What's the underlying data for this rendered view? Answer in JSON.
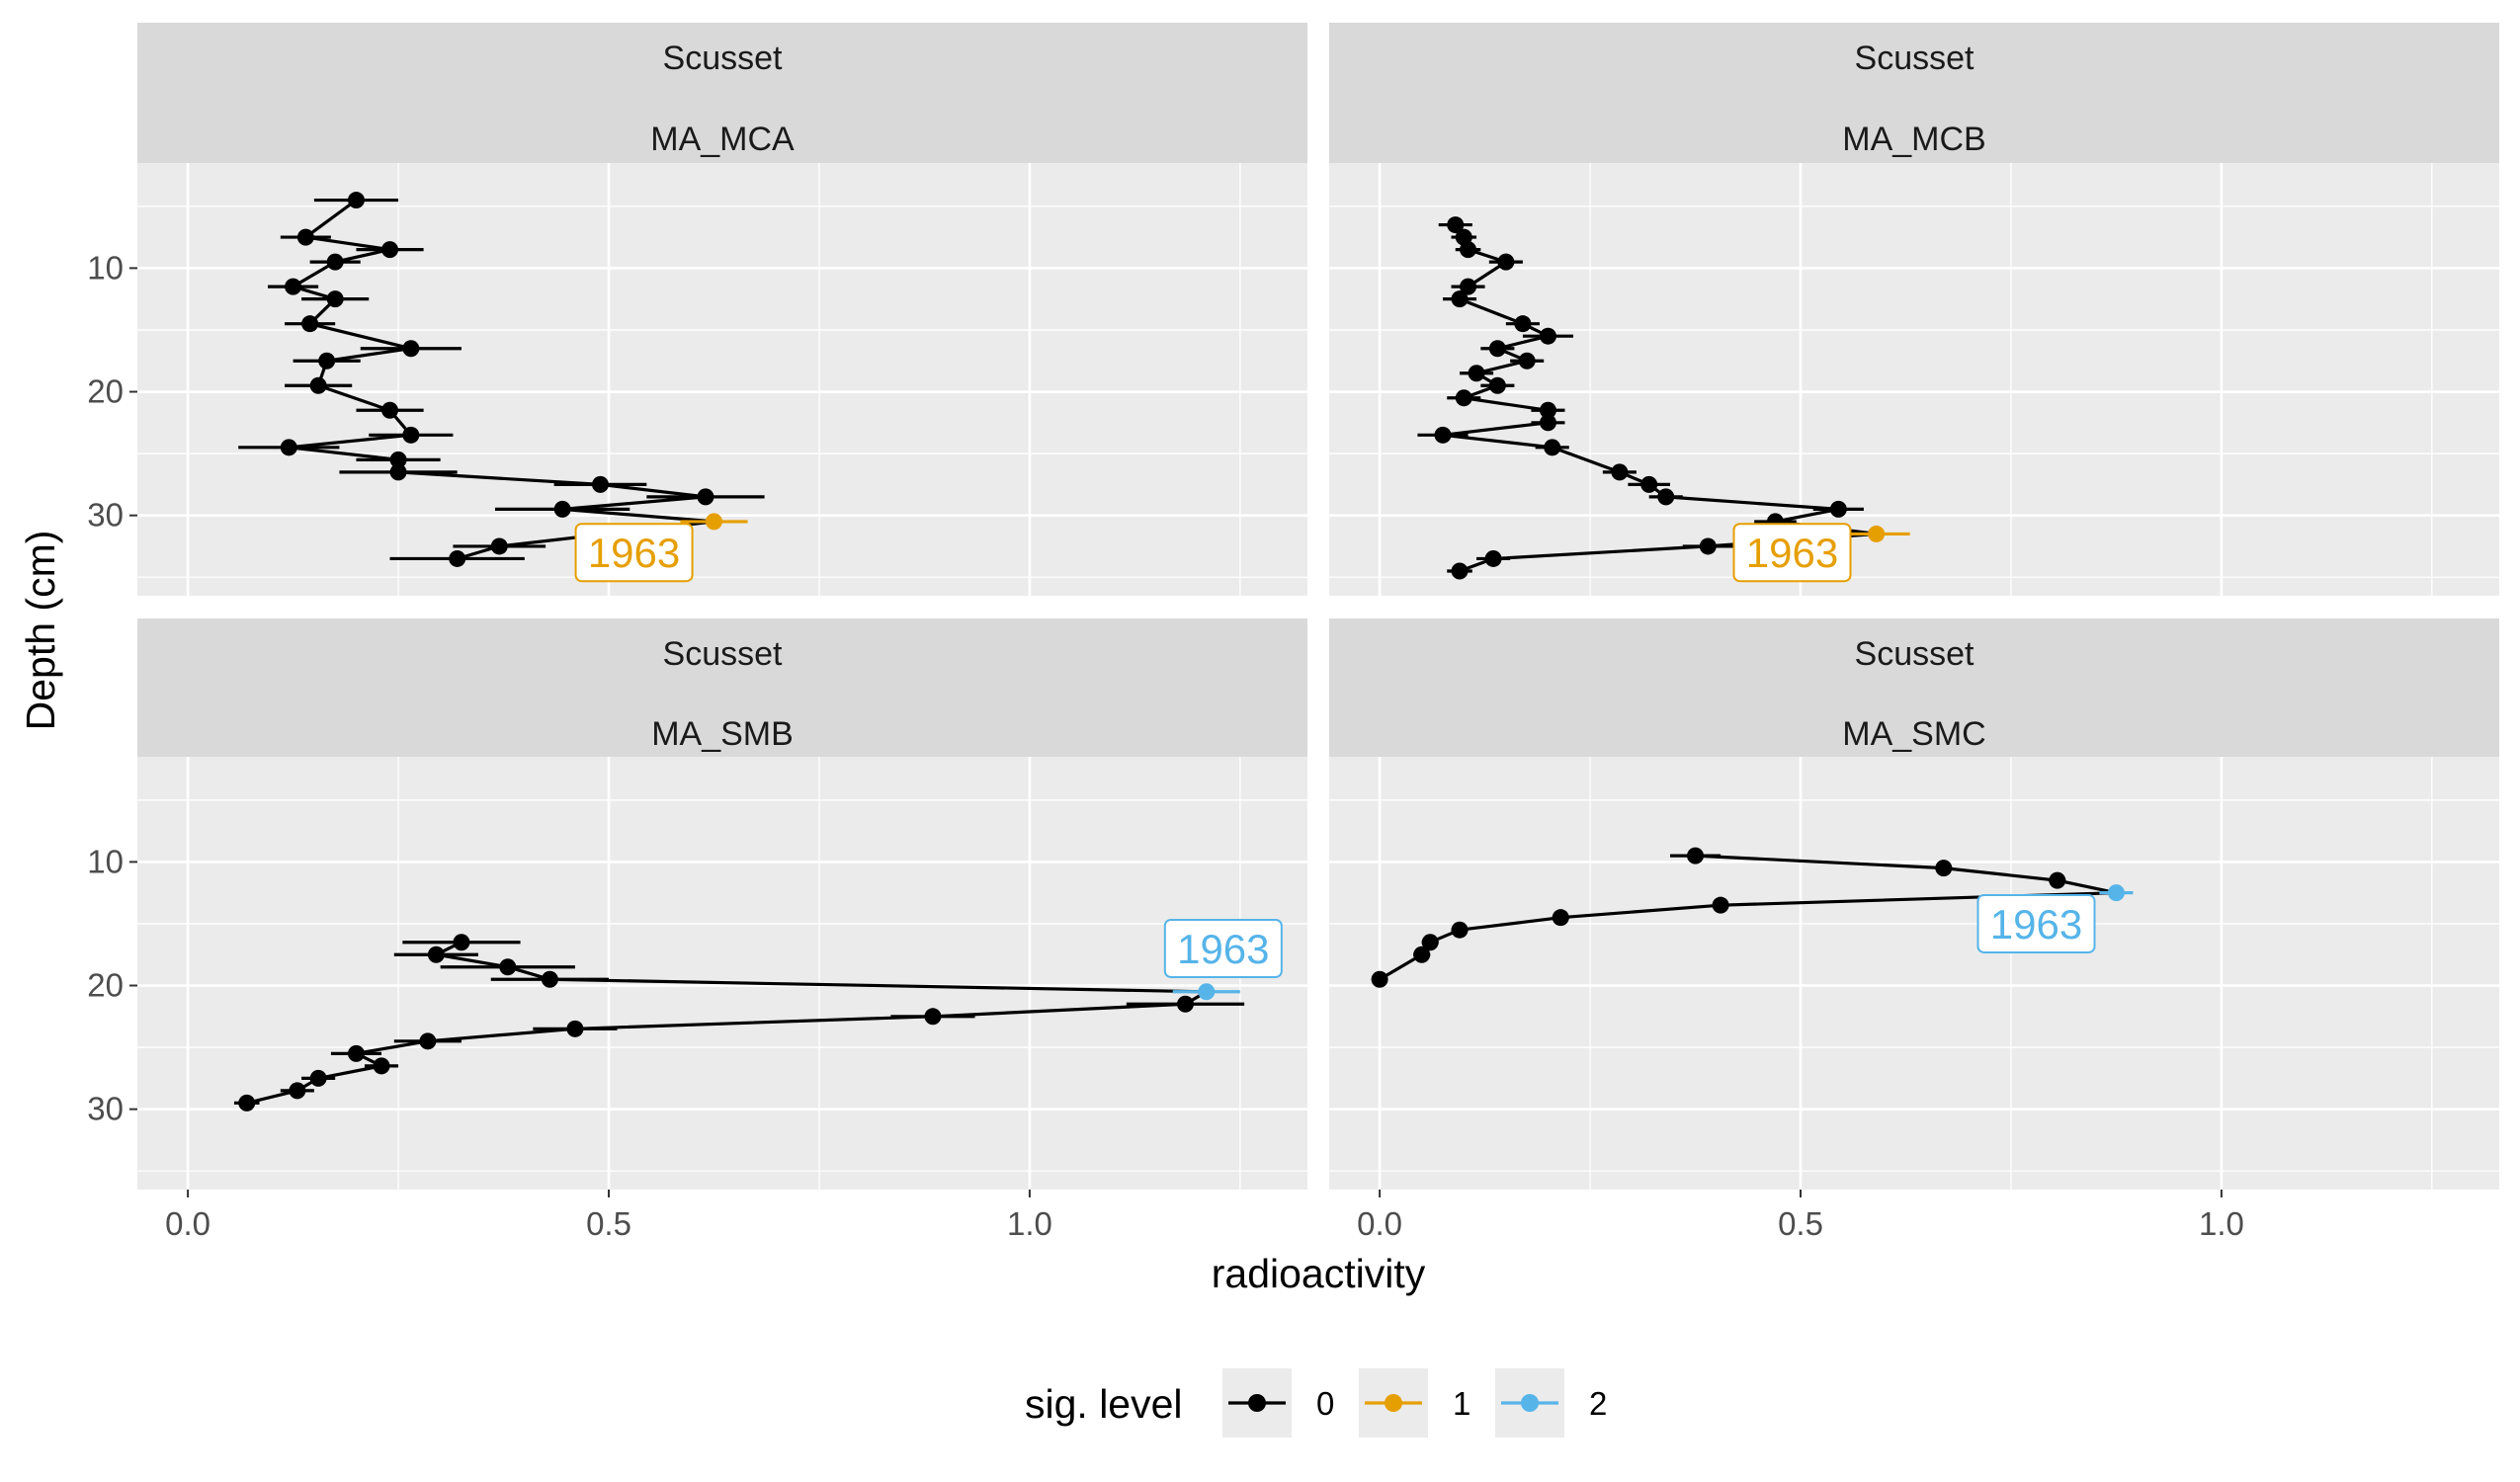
{
  "chart_data": {
    "type": "scatter",
    "facet_rows": [
      "Scusset"
    ],
    "xlabel": "radioactivity",
    "ylabel": "Depth (cm)",
    "xlim": [
      -0.06,
      1.33
    ],
    "ylim": [
      36.5,
      1.5
    ],
    "y_reversed": true,
    "x_ticks": [
      0.0,
      0.5,
      1.0
    ],
    "x_tick_labels": [
      "0.0",
      "0.5",
      "1.0"
    ],
    "y_ticks": [
      10,
      20,
      30
    ],
    "y_tick_labels": [
      "10",
      "20",
      "30"
    ],
    "legend": {
      "title": "sig. level",
      "position": "bottom",
      "entries": [
        {
          "label": "0",
          "color": "#000000"
        },
        {
          "label": "1",
          "color": "#E69F00"
        },
        {
          "label": "2",
          "color": "#56B4E9"
        }
      ]
    },
    "panels": [
      {
        "site": "Scusset",
        "core": "MA_MCA",
        "annotation": {
          "text": "1963",
          "color": "#E69F00",
          "x": 0.53,
          "y": 33
        },
        "points": [
          {
            "x": 0.2,
            "y": 4.5,
            "err": 0.05,
            "sig": 0
          },
          {
            "x": 0.14,
            "y": 7.5,
            "err": 0.03,
            "sig": 0
          },
          {
            "x": 0.24,
            "y": 8.5,
            "err": 0.04,
            "sig": 0
          },
          {
            "x": 0.175,
            "y": 9.5,
            "err": 0.03,
            "sig": 0
          },
          {
            "x": 0.125,
            "y": 11.5,
            "err": 0.03,
            "sig": 0
          },
          {
            "x": 0.175,
            "y": 12.5,
            "err": 0.04,
            "sig": 0
          },
          {
            "x": 0.145,
            "y": 14.5,
            "err": 0.03,
            "sig": 0
          },
          {
            "x": 0.265,
            "y": 16.5,
            "err": 0.06,
            "sig": 0
          },
          {
            "x": 0.165,
            "y": 17.5,
            "err": 0.04,
            "sig": 0
          },
          {
            "x": 0.155,
            "y": 19.5,
            "err": 0.04,
            "sig": 0
          },
          {
            "x": 0.24,
            "y": 21.5,
            "err": 0.04,
            "sig": 0
          },
          {
            "x": 0.265,
            "y": 23.5,
            "err": 0.05,
            "sig": 0
          },
          {
            "x": 0.12,
            "y": 24.5,
            "err": 0.06,
            "sig": 0
          },
          {
            "x": 0.25,
            "y": 25.5,
            "err": 0.05,
            "sig": 0
          },
          {
            "x": 0.25,
            "y": 26.5,
            "err": 0.07,
            "sig": 0
          },
          {
            "x": 0.49,
            "y": 27.5,
            "err": 0.055,
            "sig": 0
          },
          {
            "x": 0.615,
            "y": 28.5,
            "err": 0.07,
            "sig": 0
          },
          {
            "x": 0.445,
            "y": 29.5,
            "err": 0.08,
            "sig": 0
          },
          {
            "x": 0.625,
            "y": 30.5,
            "err": 0.04,
            "sig": 1
          },
          {
            "x": 0.37,
            "y": 32.5,
            "err": 0.055,
            "sig": 0
          },
          {
            "x": 0.32,
            "y": 33.5,
            "err": 0.08,
            "sig": 0
          }
        ]
      },
      {
        "site": "Scusset",
        "core": "MA_MCB",
        "annotation": {
          "text": "1963",
          "color": "#E69F00",
          "x": 0.49,
          "y": 33
        },
        "points": [
          {
            "x": 0.09,
            "y": 6.5,
            "err": 0.02,
            "sig": 0
          },
          {
            "x": 0.1,
            "y": 7.5,
            "err": 0.015,
            "sig": 0
          },
          {
            "x": 0.105,
            "y": 8.5,
            "err": 0.015,
            "sig": 0
          },
          {
            "x": 0.15,
            "y": 9.5,
            "err": 0.02,
            "sig": 0
          },
          {
            "x": 0.105,
            "y": 11.5,
            "err": 0.02,
            "sig": 0
          },
          {
            "x": 0.095,
            "y": 12.5,
            "err": 0.02,
            "sig": 0
          },
          {
            "x": 0.17,
            "y": 14.5,
            "err": 0.02,
            "sig": 0
          },
          {
            "x": 0.2,
            "y": 15.5,
            "err": 0.03,
            "sig": 0
          },
          {
            "x": 0.14,
            "y": 16.5,
            "err": 0.02,
            "sig": 0
          },
          {
            "x": 0.175,
            "y": 17.5,
            "err": 0.02,
            "sig": 0
          },
          {
            "x": 0.115,
            "y": 18.5,
            "err": 0.02,
            "sig": 0
          },
          {
            "x": 0.14,
            "y": 19.5,
            "err": 0.02,
            "sig": 0
          },
          {
            "x": 0.1,
            "y": 20.5,
            "err": 0.02,
            "sig": 0
          },
          {
            "x": 0.2,
            "y": 21.5,
            "err": 0.02,
            "sig": 0
          },
          {
            "x": 0.2,
            "y": 22.5,
            "err": 0.02,
            "sig": 0
          },
          {
            "x": 0.075,
            "y": 23.5,
            "err": 0.03,
            "sig": 0
          },
          {
            "x": 0.205,
            "y": 24.5,
            "err": 0.02,
            "sig": 0
          },
          {
            "x": 0.285,
            "y": 26.5,
            "err": 0.02,
            "sig": 0
          },
          {
            "x": 0.32,
            "y": 27.5,
            "err": 0.025,
            "sig": 0
          },
          {
            "x": 0.34,
            "y": 28.5,
            "err": 0.02,
            "sig": 0
          },
          {
            "x": 0.545,
            "y": 29.5,
            "err": 0.03,
            "sig": 0
          },
          {
            "x": 0.47,
            "y": 30.5,
            "err": 0.025,
            "sig": 0
          },
          {
            "x": 0.59,
            "y": 31.5,
            "err": 0.04,
            "sig": 1
          },
          {
            "x": 0.39,
            "y": 32.5,
            "err": 0.03,
            "sig": 0
          },
          {
            "x": 0.135,
            "y": 33.5,
            "err": 0.02,
            "sig": 0
          },
          {
            "x": 0.095,
            "y": 34.5,
            "err": 0.015,
            "sig": 0
          }
        ]
      },
      {
        "site": "Scusset",
        "core": "MA_SMB",
        "annotation": {
          "text": "1963",
          "color": "#56B4E9",
          "x": 1.23,
          "y": 17
        },
        "points": [
          {
            "x": 0.325,
            "y": 16.5,
            "err": 0.07,
            "sig": 0
          },
          {
            "x": 0.295,
            "y": 17.5,
            "err": 0.05,
            "sig": 0
          },
          {
            "x": 0.38,
            "y": 18.5,
            "err": 0.08,
            "sig": 0
          },
          {
            "x": 0.43,
            "y": 19.5,
            "err": 0.07,
            "sig": 0
          },
          {
            "x": 1.21,
            "y": 20.5,
            "err": 0.04,
            "sig": 2
          },
          {
            "x": 1.185,
            "y": 21.5,
            "err": 0.07,
            "sig": 0
          },
          {
            "x": 0.885,
            "y": 22.5,
            "err": 0.05,
            "sig": 0
          },
          {
            "x": 0.46,
            "y": 23.5,
            "err": 0.05,
            "sig": 0
          },
          {
            "x": 0.285,
            "y": 24.5,
            "err": 0.04,
            "sig": 0
          },
          {
            "x": 0.2,
            "y": 25.5,
            "err": 0.03,
            "sig": 0
          },
          {
            "x": 0.23,
            "y": 26.5,
            "err": 0.02,
            "sig": 0
          },
          {
            "x": 0.155,
            "y": 27.5,
            "err": 0.02,
            "sig": 0
          },
          {
            "x": 0.13,
            "y": 28.5,
            "err": 0.02,
            "sig": 0
          },
          {
            "x": 0.07,
            "y": 29.5,
            "err": 0.015,
            "sig": 0
          }
        ]
      },
      {
        "site": "Scusset",
        "core": "MA_SMC",
        "annotation": {
          "text": "1963",
          "color": "#56B4E9",
          "x": 0.78,
          "y": 15
        },
        "points": [
          {
            "x": 0.375,
            "y": 9.5,
            "err": 0.03,
            "sig": 0
          },
          {
            "x": 0.67,
            "y": 10.5,
            "err": 0.01,
            "sig": 0
          },
          {
            "x": 0.805,
            "y": 11.5,
            "err": 0.01,
            "sig": 0
          },
          {
            "x": 0.875,
            "y": 12.5,
            "err": 0.02,
            "sig": 2
          },
          {
            "x": 0.405,
            "y": 13.5,
            "err": 0.01,
            "sig": 0
          },
          {
            "x": 0.215,
            "y": 14.5,
            "err": 0.01,
            "sig": 0
          },
          {
            "x": 0.095,
            "y": 15.5,
            "err": 0.01,
            "sig": 0
          },
          {
            "x": 0.06,
            "y": 16.5,
            "err": 0.01,
            "sig": 0
          },
          {
            "x": 0.05,
            "y": 17.5,
            "err": 0.01,
            "sig": 0
          },
          {
            "x": 0.0,
            "y": 19.5,
            "err": 0.005,
            "sig": 0
          }
        ]
      }
    ]
  }
}
